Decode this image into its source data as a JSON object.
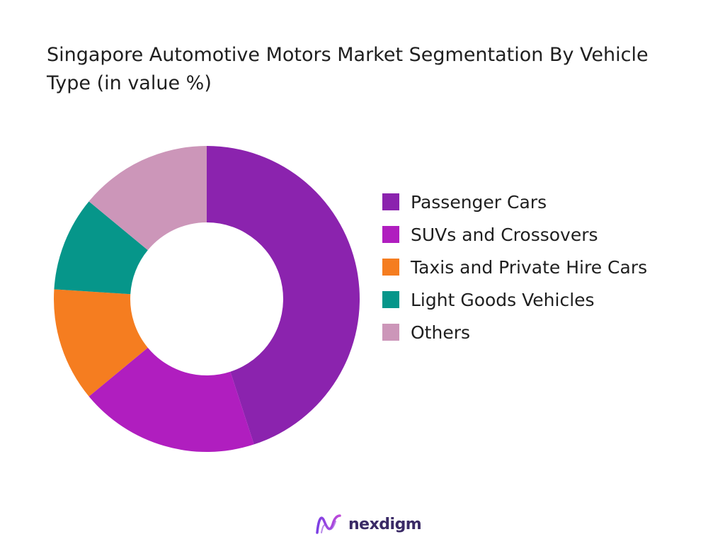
{
  "chart_data": {
    "type": "pie",
    "title": "Singapore Automotive Motors Market Segmentation By Vehicle Type (in value %)",
    "categories": [
      "Passenger Cars",
      "SUVs and Crossovers",
      "Taxis and Private Hire Cars",
      "Light Goods Vehicles",
      "Others"
    ],
    "values": [
      45,
      19,
      12,
      10,
      14
    ],
    "colors": [
      "#8B23AE",
      "#B01EBF",
      "#F57D20",
      "#06968A",
      "#CC96B9"
    ],
    "legend_position": "right"
  },
  "brand": {
    "name": "nexdigm",
    "icon": "nexdigm-logo-icon"
  }
}
